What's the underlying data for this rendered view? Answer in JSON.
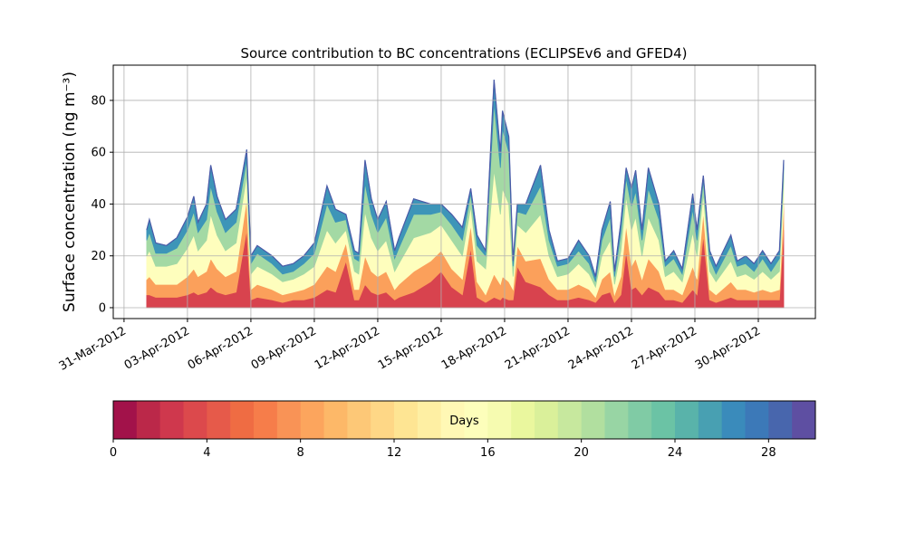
{
  "chart_data": [
    {
      "type": "stacked_area",
      "title": "Source contribution to BC concentrations (ECLIPSEv6 and GFED4)",
      "y_label": "Surface concentration (ng m⁻³)",
      "x": [
        1.07,
        1.2,
        1.5,
        2.0,
        2.5,
        3.0,
        3.3,
        3.5,
        3.9,
        4.1,
        4.4,
        4.8,
        5.3,
        5.8,
        6.0,
        6.3,
        7.0,
        7.5,
        8.0,
        8.5,
        9.0,
        9.6,
        10.0,
        10.5,
        10.9,
        11.1,
        11.4,
        11.7,
        12.0,
        12.4,
        12.8,
        13.0,
        13.7,
        14.5,
        15.0,
        15.5,
        16.0,
        16.4,
        16.7,
        17.1,
        17.5,
        17.8,
        17.9,
        18.2,
        18.4,
        18.6,
        19.0,
        19.7,
        20.1,
        20.5,
        21.0,
        21.5,
        22.0,
        22.3,
        22.6,
        23.0,
        23.2,
        23.5,
        23.75,
        24.0,
        24.2,
        24.5,
        24.8,
        25.3,
        25.6,
        26.0,
        26.4,
        26.9,
        27.1,
        27.4,
        27.7,
        28.0,
        28.7,
        29.0,
        29.4,
        29.8,
        30.2,
        30.6,
        31.0,
        31.2
      ],
      "series": [
        {
          "color": "#d8434e",
          "values": [
            5,
            5,
            4,
            4,
            4,
            5,
            6,
            5,
            6,
            8,
            6,
            5,
            6,
            30,
            3,
            4,
            3,
            2,
            3,
            3,
            4,
            7,
            6,
            18,
            3,
            3,
            9,
            6,
            5,
            6,
            3,
            4,
            6,
            10,
            14,
            8,
            5,
            23,
            4,
            2,
            4,
            3,
            4,
            3,
            3,
            16,
            10,
            8,
            5,
            3,
            3,
            4,
            3,
            2,
            5,
            6,
            2,
            5,
            22,
            7,
            8,
            5,
            8,
            6,
            3,
            3,
            2,
            7,
            5,
            28,
            3,
            2,
            4,
            3,
            3,
            3,
            3,
            3,
            3,
            30
          ]
        },
        {
          "color": "#fba05b",
          "values": [
            6,
            7,
            5,
            5,
            5,
            7,
            9,
            7,
            8,
            11,
            9,
            7,
            8,
            12,
            4,
            5,
            4,
            3,
            3,
            4,
            5,
            9,
            8,
            7,
            4,
            4,
            11,
            8,
            7,
            8,
            4,
            5,
            8,
            8,
            8,
            7,
            6,
            9,
            6,
            3,
            9,
            6,
            8,
            7,
            4,
            8,
            8,
            11,
            6,
            4,
            4,
            5,
            4,
            2,
            6,
            8,
            3,
            7,
            10,
            9,
            11,
            6,
            11,
            8,
            4,
            4,
            3,
            9,
            6,
            9,
            4,
            3,
            6,
            4,
            4,
            3,
            4,
            3,
            4,
            10
          ]
        },
        {
          "color": "#fefebd",
          "values": [
            9,
            10,
            7,
            7,
            8,
            11,
            13,
            10,
            12,
            17,
            13,
            10,
            11,
            9,
            6,
            7,
            6,
            5,
            5,
            6,
            7,
            14,
            11,
            5,
            7,
            6,
            17,
            13,
            10,
            12,
            7,
            8,
            13,
            11,
            10,
            11,
            9,
            7,
            8,
            10,
            40,
            27,
            34,
            30,
            5,
            8,
            11,
            17,
            9,
            5,
            6,
            8,
            6,
            4,
            9,
            12,
            4,
            10,
            11,
            14,
            16,
            9,
            16,
            12,
            5,
            7,
            5,
            13,
            9,
            7,
            7,
            5,
            8,
            5,
            6,
            5,
            7,
            5,
            7,
            9
          ]
        },
        {
          "color": "#a3d9a4",
          "values": [
            6,
            7,
            5,
            5,
            6,
            7,
            9,
            7,
            8,
            11,
            9,
            7,
            8,
            6,
            4,
            5,
            4,
            3,
            3,
            4,
            5,
            10,
            8,
            4,
            5,
            5,
            11,
            9,
            7,
            9,
            5,
            6,
            9,
            7,
            5,
            6,
            6,
            5,
            6,
            5,
            26,
            18,
            23,
            20,
            4,
            5,
            7,
            11,
            6,
            4,
            4,
            5,
            4,
            2,
            6,
            9,
            3,
            7,
            7,
            9,
            10,
            6,
            11,
            8,
            4,
            5,
            3,
            9,
            6,
            5,
            5,
            3,
            6,
            4,
            4,
            3,
            5,
            3,
            5,
            5
          ]
        },
        {
          "color": "#3d95b8",
          "values": [
            4,
            5,
            4,
            3,
            4,
            5,
            6,
            4,
            6,
            8,
            6,
            5,
            5,
            4,
            3,
            3,
            3,
            3,
            3,
            3,
            4,
            7,
            5,
            2,
            3,
            3,
            9,
            6,
            5,
            6,
            3,
            4,
            6,
            4,
            3,
            4,
            5,
            2,
            4,
            2,
            9,
            6,
            7,
            6,
            2,
            3,
            4,
            8,
            4,
            2,
            2,
            4,
            3,
            2,
            4,
            6,
            2,
            4,
            4,
            7,
            8,
            4,
            8,
            6,
            2,
            3,
            2,
            6,
            4,
            2,
            3,
            3,
            4,
            2,
            3,
            3,
            3,
            3,
            3,
            3
          ]
        }
      ],
      "xlim": [
        -0.51,
        32.7
      ],
      "xticks": [
        {
          "value": 0,
          "label": "31-Mar-2012"
        },
        {
          "value": 3,
          "label": "03-Apr-2012"
        },
        {
          "value": 6,
          "label": "06-Apr-2012"
        },
        {
          "value": 9,
          "label": "09-Apr-2012"
        },
        {
          "value": 12,
          "label": "12-Apr-2012"
        },
        {
          "value": 15,
          "label": "15-Apr-2012"
        },
        {
          "value": 18,
          "label": "18-Apr-2012"
        },
        {
          "value": 21,
          "label": "21-Apr-2012"
        },
        {
          "value": 24,
          "label": "24-Apr-2012"
        },
        {
          "value": 27,
          "label": "27-Apr-2012"
        },
        {
          "value": 30,
          "label": "30-Apr-2012"
        }
      ],
      "ylim": [
        -4.2,
        93.6
      ],
      "yticks": [
        0,
        20,
        40,
        60,
        80
      ],
      "grid": true
    },
    {
      "type": "colorbar",
      "label": "Days",
      "colors": [
        "#a2124a",
        "#bb2849",
        "#cf384d",
        "#dc494c",
        "#e65a4a",
        "#ef6c43",
        "#f67d4a",
        "#f99356",
        "#fca55d",
        "#fdb868",
        "#fdc877",
        "#fed786",
        "#fee593",
        "#feefa3",
        "#fff8b5",
        "#fdfebb",
        "#f6fbb0",
        "#eaf79e",
        "#daf09a",
        "#c7e89e",
        "#b1df9f",
        "#98d5a4",
        "#80cba5",
        "#6bc3a5",
        "#59b3aa",
        "#48a0b2",
        "#3a8bbb",
        "#3c79b8",
        "#4866ad",
        "#5e4fa2"
      ],
      "xlim": [
        0,
        30
      ],
      "xticks": [
        0,
        4,
        8,
        12,
        16,
        20,
        24,
        28
      ]
    }
  ]
}
